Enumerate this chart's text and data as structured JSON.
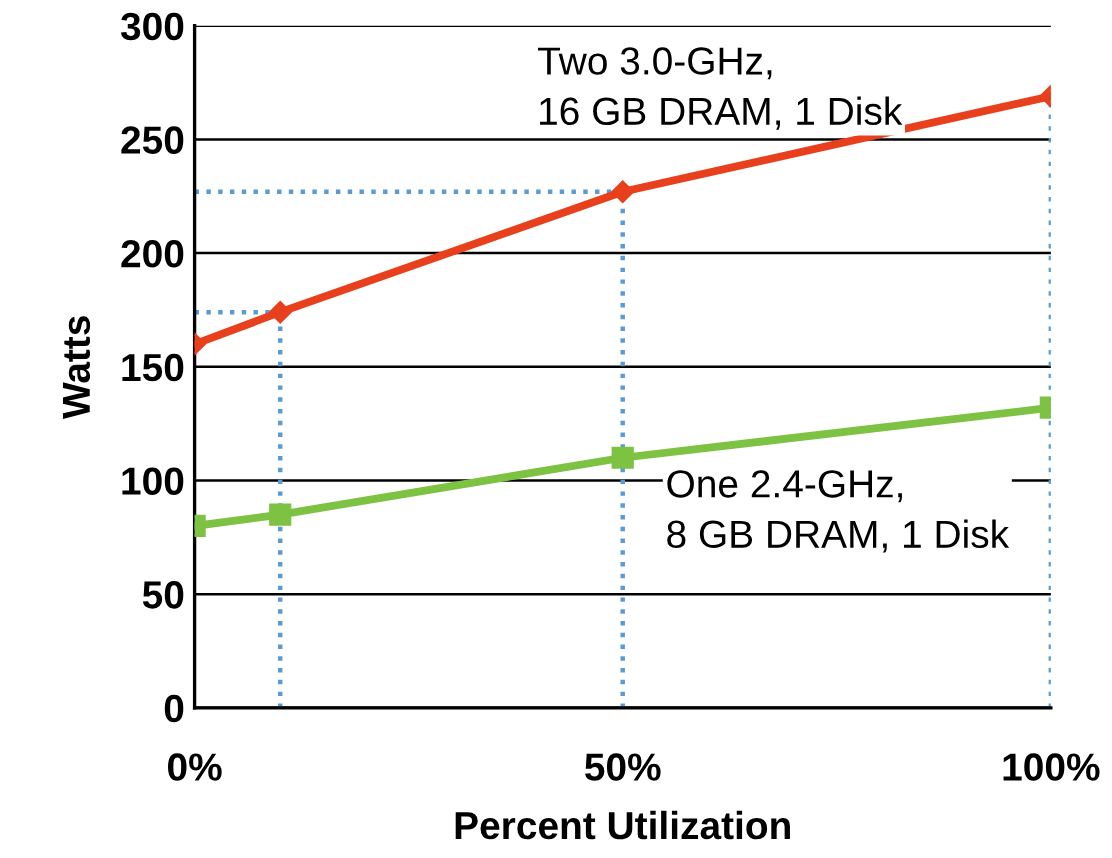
{
  "chart_data": {
    "type": "line",
    "xlabel": "Percent Utilization",
    "ylabel": "Watts",
    "x": [
      0,
      10,
      50,
      100
    ],
    "series": [
      {
        "color": "#e8401c",
        "values": [
          160,
          174,
          227,
          269
        ],
        "marker": "diamond"
      },
      {
        "color": "#7dc242",
        "values": [
          80,
          85,
          110,
          132
        ],
        "marker": "square"
      }
    ],
    "xlim": [
      0,
      100
    ],
    "xticks": [
      {
        "value": 0,
        "label": "0%"
      },
      {
        "value": 50,
        "label": "50%"
      },
      {
        "value": 100,
        "label": "100%"
      }
    ],
    "ylim": [
      0,
      300
    ],
    "yticks": [
      0,
      50,
      100,
      150,
      200,
      250,
      300
    ],
    "grid": "y",
    "line_style": "solid",
    "ref_lines": [
      {
        "axis": "x",
        "value": 10,
        "color": "#5b9bd5",
        "line_style": "dotted"
      },
      {
        "axis": "x",
        "value": 50,
        "color": "#5b9bd5",
        "line_style": "dotted"
      },
      {
        "axis": "x",
        "value": 100,
        "color": "#5b9bd5",
        "line_style": "dotted"
      },
      {
        "axis": "y",
        "value": 174,
        "color": "#5b9bd5",
        "line_style": "dotted"
      },
      {
        "axis": "y",
        "value": 227,
        "color": "#5b9bd5",
        "line_style": "dotted"
      }
    ],
    "annotations": [
      "Two 3.0-GHz,\n16 GB DRAM, 1 Disk",
      "One 2.4-GHz,\n8 GB DRAM, 1 Disk"
    ]
  }
}
